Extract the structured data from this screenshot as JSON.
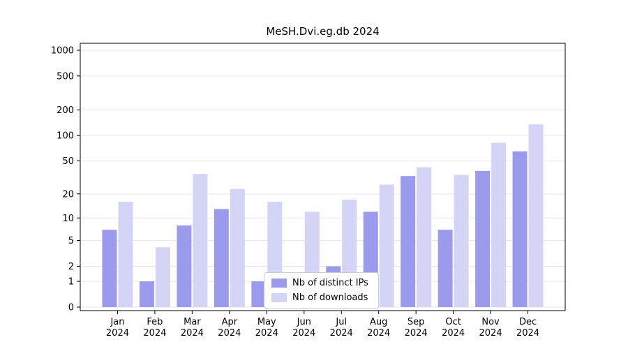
{
  "chart_data": {
    "type": "bar",
    "title": "MeSH.Dvi.eg.db 2024",
    "year": "2024",
    "categories": [
      "Jan",
      "Feb",
      "Mar",
      "Apr",
      "May",
      "Jun",
      "Jul",
      "Aug",
      "Sep",
      "Oct",
      "Nov",
      "Dec"
    ],
    "series": [
      {
        "key": "distinct-ips",
        "name": "Nb of distinct IPs",
        "color": "#9b9bee",
        "values": [
          7,
          1,
          8,
          13,
          1,
          0,
          2,
          12,
          33,
          7,
          38,
          65
        ]
      },
      {
        "key": "downloads",
        "name": "Nb of downloads",
        "color": "#d4d4f6",
        "values": [
          16,
          4,
          35,
          23,
          16,
          12,
          17,
          26,
          42,
          34,
          82,
          135
        ]
      }
    ],
    "yticks": [
      0,
      1,
      2,
      5,
      10,
      20,
      50,
      100,
      200,
      500,
      1000
    ],
    "ylim": [
      0,
      1000
    ],
    "yscale": "log1p",
    "grid": true,
    "grid_color": "#e7e7e7",
    "legend_position": "bottom-center"
  }
}
